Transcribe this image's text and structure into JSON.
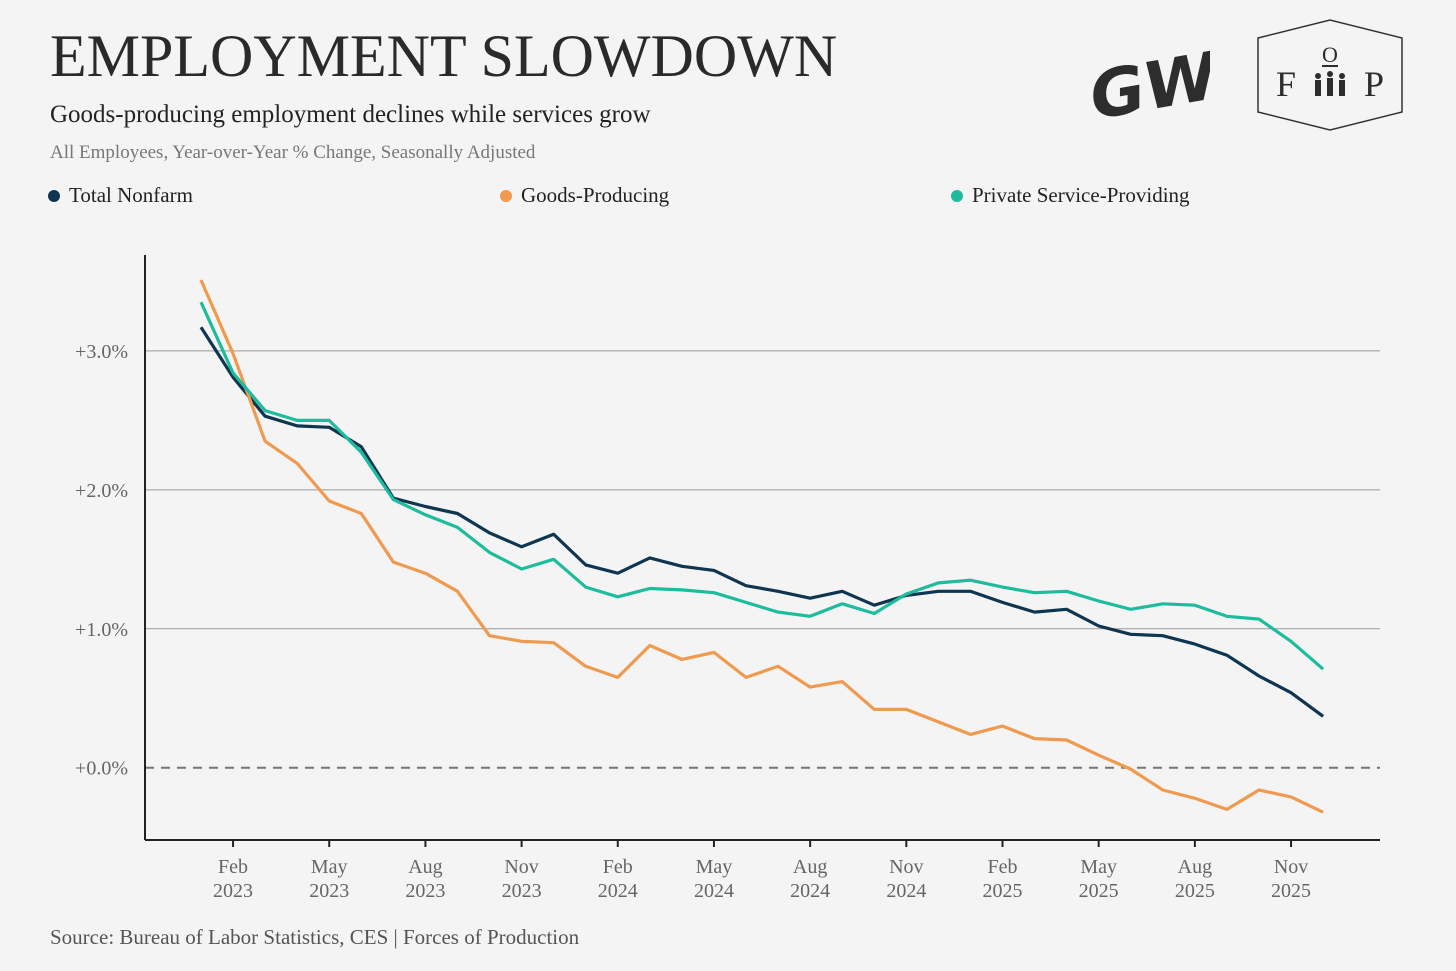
{
  "header": {
    "title": "EMPLOYMENT SLOWDOWN",
    "subtitle": "Goods-producing employment declines while services grow",
    "note": "All Employees, Year-over-Year % Change, Seasonally Adjusted",
    "source": "Source: Bureau of Labor Statistics, CES | Forces of Production"
  },
  "logos": {
    "left": "GW",
    "right_top": "O",
    "right_left": "F",
    "right_right": "P"
  },
  "chart_data": {
    "type": "line",
    "title": "EMPLOYMENT SLOWDOWN",
    "xlabel": "",
    "ylabel": "",
    "ylim": [
      -0.52,
      3.69
    ],
    "grid": true,
    "legend_position": "top",
    "y_ticks": [
      0,
      1,
      2,
      3
    ],
    "y_tick_labels": [
      "+0.0%",
      "+1.0%",
      "+2.0%",
      "+3.0%"
    ],
    "x_start": "Jan 2023",
    "x_ticks": [
      {
        "month_index": 1,
        "label": [
          "Feb",
          "2023"
        ]
      },
      {
        "month_index": 4,
        "label": [
          "May",
          "2023"
        ]
      },
      {
        "month_index": 7,
        "label": [
          "Aug",
          "2023"
        ]
      },
      {
        "month_index": 10,
        "label": [
          "Nov",
          "2023"
        ]
      },
      {
        "month_index": 13,
        "label": [
          "Feb",
          "2024"
        ]
      },
      {
        "month_index": 16,
        "label": [
          "May",
          "2024"
        ]
      },
      {
        "month_index": 19,
        "label": [
          "Aug",
          "2024"
        ]
      },
      {
        "month_index": 22,
        "label": [
          "Nov",
          "2024"
        ]
      },
      {
        "month_index": 25,
        "label": [
          "Feb",
          "2025"
        ]
      },
      {
        "month_index": 28,
        "label": [
          "May",
          "2025"
        ]
      },
      {
        "month_index": 31,
        "label": [
          "Aug",
          "2025"
        ]
      },
      {
        "month_index": 34,
        "label": [
          "Nov",
          "2025"
        ]
      }
    ],
    "series": [
      {
        "name": "Total Nonfarm",
        "color": "#0f3550",
        "values": [
          3.17,
          2.81,
          2.53,
          2.46,
          2.45,
          2.31,
          1.94,
          1.88,
          1.83,
          1.69,
          1.59,
          1.68,
          1.46,
          1.4,
          1.51,
          1.45,
          1.42,
          1.31,
          1.27,
          1.22,
          1.27,
          1.17,
          1.24,
          1.27,
          1.27,
          1.19,
          1.12,
          1.14,
          1.02,
          0.96,
          0.95,
          0.89,
          0.81,
          0.66,
          0.54,
          0.37
        ]
      },
      {
        "name": "Goods-Producing",
        "color": "#ef9a4f",
        "values": [
          3.51,
          2.98,
          2.35,
          2.19,
          1.92,
          1.83,
          1.48,
          1.4,
          1.27,
          0.95,
          0.91,
          0.9,
          0.73,
          0.65,
          0.88,
          0.78,
          0.83,
          0.65,
          0.73,
          0.58,
          0.62,
          0.42,
          0.42,
          0.33,
          0.24,
          0.3,
          0.21,
          0.2,
          0.09,
          -0.01,
          -0.16,
          -0.22,
          -0.3,
          -0.16,
          -0.21,
          -0.32
        ]
      },
      {
        "name": "Private Service-Providing",
        "color": "#1cbc9c",
        "values": [
          3.35,
          2.84,
          2.57,
          2.5,
          2.5,
          2.27,
          1.93,
          1.82,
          1.73,
          1.55,
          1.43,
          1.5,
          1.3,
          1.23,
          1.29,
          1.28,
          1.26,
          1.19,
          1.12,
          1.09,
          1.18,
          1.11,
          1.25,
          1.33,
          1.35,
          1.3,
          1.26,
          1.27,
          1.2,
          1.14,
          1.18,
          1.17,
          1.09,
          1.07,
          0.91,
          0.71
        ]
      }
    ]
  }
}
